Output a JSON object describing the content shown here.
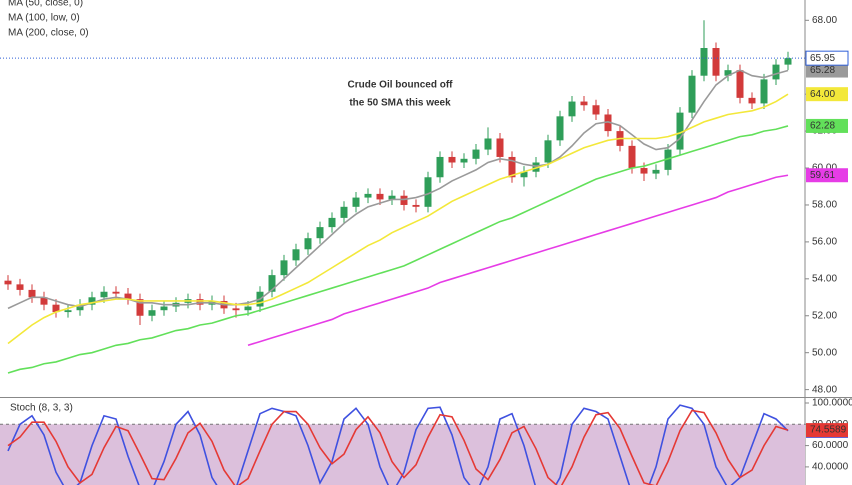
{
  "chart_data": [
    {
      "type": "candlestick",
      "legend": [
        "MA (50, close, 0)",
        "MA (100, low, 0)",
        "MA (200, close, 0)"
      ],
      "annotation": [
        "Crude Oil bounced off",
        "the 50 SMA this week"
      ],
      "annotation_color": "#e8262d",
      "up_color": "#2f9e59",
      "down_color": "#d23a3a",
      "last_color": "#2f5fd8",
      "ylim": [
        47.6,
        69.1
      ],
      "yticks": [
        {
          "value": 68,
          "label": "68.00"
        },
        {
          "value": 66,
          "label": "66.00"
        },
        {
          "value": 64,
          "label": "64.00"
        },
        {
          "value": 62,
          "label": "62.00"
        },
        {
          "value": 60,
          "label": "60.00"
        },
        {
          "value": 58,
          "label": "58.00"
        },
        {
          "value": 56,
          "label": "56.00"
        },
        {
          "value": 54,
          "label": "54.00"
        },
        {
          "value": 52,
          "label": "52.00"
        },
        {
          "value": 50,
          "label": "50.00"
        },
        {
          "value": 48,
          "label": "48.00"
        }
      ],
      "open": [
        53.9,
        53.7,
        53.4,
        53.0,
        52.6,
        52.2,
        52.3,
        52.6,
        53.0,
        53.3,
        53.2,
        52.9,
        52.0,
        52.3,
        52.5,
        52.7,
        52.9,
        52.6,
        52.8,
        52.4,
        52.3,
        52.5,
        53.3,
        54.2,
        55.0,
        55.6,
        56.2,
        56.8,
        57.3,
        57.9,
        58.4,
        58.6,
        58.3,
        58.5,
        58.0,
        57.9,
        59.5,
        60.6,
        60.3,
        60.5,
        61.0,
        61.6,
        60.6,
        59.5,
        59.8,
        60.3,
        61.5,
        62.8,
        63.6,
        63.4,
        62.9,
        62.0,
        61.2,
        60.0,
        59.7,
        59.9,
        61.0,
        63.0,
        65.0,
        66.5,
        65.0,
        65.3,
        63.8,
        63.5,
        64.8,
        65.6
      ],
      "high": [
        54.2,
        54.0,
        53.7,
        53.3,
        52.9,
        52.6,
        52.9,
        53.3,
        53.6,
        53.6,
        53.5,
        53.2,
        52.6,
        52.8,
        53.0,
        53.2,
        53.2,
        53.1,
        53.1,
        52.7,
        52.8,
        53.6,
        54.5,
        55.3,
        55.9,
        56.5,
        57.1,
        57.6,
        58.2,
        58.7,
        58.9,
        58.9,
        58.8,
        58.8,
        58.3,
        59.8,
        60.9,
        60.9,
        60.8,
        61.3,
        62.2,
        61.9,
        60.9,
        60.1,
        60.6,
        61.8,
        63.1,
        63.9,
        63.9,
        63.7,
        63.2,
        62.3,
        61.5,
        60.3,
        60.2,
        61.3,
        63.3,
        65.3,
        68.0,
        66.8,
        65.6,
        65.6,
        64.1,
        65.1,
        65.9,
        66.3
      ],
      "low": [
        53.4,
        53.1,
        52.7,
        52.3,
        51.9,
        51.9,
        52.0,
        52.3,
        52.7,
        52.9,
        52.6,
        51.5,
        51.7,
        52.0,
        52.2,
        52.4,
        52.3,
        52.3,
        52.1,
        51.9,
        52.0,
        52.2,
        53.0,
        53.9,
        54.7,
        55.3,
        55.9,
        56.5,
        57.0,
        57.6,
        58.1,
        58.0,
        58.0,
        57.7,
        57.6,
        57.6,
        59.2,
        60.0,
        60.0,
        60.2,
        60.7,
        60.3,
        59.2,
        59.0,
        59.5,
        60.0,
        61.2,
        62.5,
        63.1,
        62.6,
        61.7,
        60.9,
        59.7,
        59.3,
        59.4,
        59.6,
        60.7,
        62.7,
        64.7,
        64.7,
        64.7,
        63.5,
        63.2,
        63.2,
        64.5,
        65.3
      ],
      "close": [
        53.7,
        53.4,
        53.0,
        52.6,
        52.2,
        52.3,
        52.6,
        53.0,
        53.3,
        53.2,
        52.9,
        52.0,
        52.3,
        52.5,
        52.7,
        52.9,
        52.6,
        52.8,
        52.4,
        52.3,
        52.5,
        53.3,
        54.2,
        55.0,
        55.6,
        56.2,
        56.8,
        57.3,
        57.9,
        58.4,
        58.6,
        58.3,
        58.5,
        58.0,
        57.9,
        59.5,
        60.6,
        60.3,
        60.5,
        61.0,
        61.6,
        60.6,
        59.5,
        59.8,
        60.3,
        61.5,
        62.8,
        63.6,
        63.4,
        62.9,
        62.0,
        61.2,
        60.0,
        59.7,
        59.9,
        61.0,
        63.0,
        65.0,
        66.5,
        65.0,
        65.3,
        63.8,
        63.5,
        64.8,
        65.6,
        65.95
      ],
      "series": [
        {
          "name": "MA (50, close, 0)",
          "color": "#9a9a9a",
          "values": [
            52.4,
            52.7,
            53.0,
            53.0,
            52.8,
            52.6,
            52.5,
            52.7,
            52.9,
            53.0,
            52.9,
            52.7,
            52.7,
            52.6,
            52.6,
            52.6,
            52.7,
            52.7,
            52.6,
            52.6,
            52.7,
            52.9,
            53.4,
            54.0,
            54.6,
            55.2,
            55.8,
            56.4,
            57.0,
            57.5,
            57.9,
            58.1,
            58.3,
            58.3,
            58.4,
            58.6,
            58.9,
            59.3,
            59.6,
            59.9,
            60.3,
            60.5,
            60.4,
            60.2,
            60.1,
            60.2,
            60.6,
            61.2,
            61.9,
            62.4,
            62.5,
            62.3,
            61.8,
            61.3,
            61.0,
            61.1,
            61.6,
            62.6,
            63.6,
            64.5,
            65.0,
            65.3,
            65.0,
            64.9,
            65.1,
            65.28
          ]
        },
        {
          "name": "MA (100, low, 0)",
          "color": "#f3e83a",
          "last_label": "64.00",
          "values": [
            50.5,
            51.0,
            51.5,
            51.9,
            52.2,
            52.4,
            52.6,
            52.7,
            52.8,
            52.9,
            52.9,
            52.8,
            52.8,
            52.8,
            52.8,
            52.8,
            52.8,
            52.8,
            52.7,
            52.6,
            52.6,
            52.7,
            52.9,
            53.2,
            53.5,
            53.8,
            54.2,
            54.6,
            55.0,
            55.4,
            55.8,
            56.1,
            56.5,
            56.8,
            57.1,
            57.4,
            57.8,
            58.2,
            58.5,
            58.8,
            59.1,
            59.4,
            59.6,
            59.8,
            60.0,
            60.2,
            60.5,
            60.8,
            61.1,
            61.3,
            61.5,
            61.6,
            61.6,
            61.6,
            61.6,
            61.7,
            61.9,
            62.2,
            62.5,
            62.7,
            62.9,
            63.0,
            63.1,
            63.3,
            63.6,
            64.0
          ]
        },
        {
          "name": "MA (200, close, 0)",
          "color": "#62e05a",
          "values": [
            48.9,
            49.1,
            49.2,
            49.4,
            49.5,
            49.7,
            49.9,
            50.0,
            50.2,
            50.4,
            50.5,
            50.7,
            50.8,
            51.0,
            51.2,
            51.3,
            51.5,
            51.6,
            51.8,
            52.0,
            52.1,
            52.3,
            52.5,
            52.7,
            52.9,
            53.1,
            53.3,
            53.5,
            53.7,
            53.9,
            54.1,
            54.3,
            54.5,
            54.7,
            55.0,
            55.3,
            55.6,
            55.9,
            56.2,
            56.5,
            56.8,
            57.1,
            57.3,
            57.6,
            57.9,
            58.2,
            58.5,
            58.8,
            59.1,
            59.4,
            59.6,
            59.8,
            60.0,
            60.1,
            60.3,
            60.5,
            60.7,
            60.9,
            61.1,
            61.3,
            61.5,
            61.7,
            61.8,
            62.0,
            62.1,
            62.28
          ]
        },
        {
          "color": "#e63ce6",
          "values": [
            null,
            null,
            null,
            null,
            null,
            null,
            null,
            null,
            null,
            null,
            null,
            null,
            null,
            null,
            null,
            null,
            null,
            null,
            null,
            null,
            50.4,
            50.6,
            50.8,
            51.0,
            51.2,
            51.4,
            51.6,
            51.8,
            52.1,
            52.3,
            52.5,
            52.7,
            52.9,
            53.1,
            53.3,
            53.5,
            53.8,
            54.0,
            54.2,
            54.4,
            54.6,
            54.8,
            55.0,
            55.2,
            55.4,
            55.6,
            55.8,
            56.0,
            56.2,
            56.4,
            56.6,
            56.8,
            57.0,
            57.2,
            57.4,
            57.6,
            57.8,
            58.0,
            58.2,
            58.4,
            58.7,
            58.9,
            59.1,
            59.3,
            59.5,
            59.61
          ]
        }
      ]
    },
    {
      "type": "line",
      "title": "Stoch (8, 3, 3)",
      "ylim": [
        23,
        104.7
      ],
      "band": [
        20,
        80
      ],
      "band_color": "#dcc0dc",
      "yticks": [
        {
          "value": 100,
          "label": "100.0000"
        },
        {
          "value": 80,
          "label": "80.0000"
        },
        {
          "value": 60,
          "label": "60.0000"
        },
        {
          "value": 40,
          "label": "40.0000"
        }
      ],
      "series": [
        {
          "color": "#3f51e0",
          "values": [
            55,
            80,
            88,
            70,
            35,
            15,
            25,
            60,
            88,
            85,
            50,
            20,
            18,
            45,
            80,
            92,
            70,
            30,
            12,
            20,
            55,
            90,
            95,
            92,
            88,
            60,
            25,
            45,
            85,
            95,
            80,
            40,
            15,
            35,
            75,
            95,
            96,
            70,
            30,
            15,
            40,
            85,
            90,
            60,
            20,
            10,
            30,
            80,
            95,
            92,
            85,
            50,
            15,
            10,
            40,
            85,
            98,
            95,
            80,
            40,
            20,
            30,
            60,
            90,
            85,
            73.8416
          ]
        },
        {
          "color": "#e53935",
          "values": [
            60,
            68,
            82,
            82,
            64,
            40,
            25,
            33,
            58,
            78,
            74,
            52,
            29,
            28,
            48,
            72,
            81,
            64,
            37,
            21,
            29,
            55,
            80,
            92,
            92,
            80,
            58,
            43,
            52,
            75,
            87,
            72,
            45,
            30,
            42,
            68,
            89,
            87,
            65,
            38,
            28,
            47,
            72,
            78,
            57,
            30,
            20,
            40,
            68,
            89,
            91,
            76,
            50,
            25,
            22,
            45,
            74,
            93,
            91,
            72,
            47,
            30,
            37,
            60,
            78,
            74.5589
          ]
        }
      ]
    }
  ]
}
